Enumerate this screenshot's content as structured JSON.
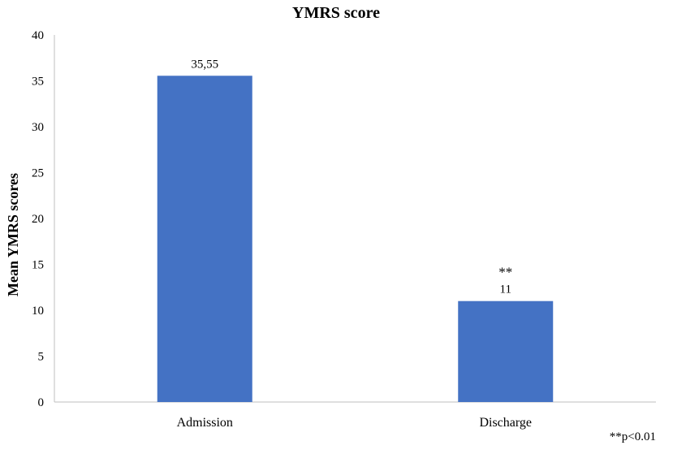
{
  "chart_data": {
    "type": "bar",
    "title": "YMRS score",
    "xlabel": "",
    "ylabel": "Mean YMRS scores",
    "categories": [
      "Admission",
      "Discharge"
    ],
    "values": [
      35.55,
      11
    ],
    "data_labels": [
      "35,55",
      "11"
    ],
    "significance_marks": [
      "",
      "**"
    ],
    "footnote": "**p<0.01",
    "ylim": [
      0,
      40
    ],
    "yticks": [
      0,
      5,
      10,
      15,
      20,
      25,
      30,
      35,
      40
    ],
    "ytick_labels": [
      "0",
      "5",
      "10",
      "15",
      "20",
      "25",
      "30",
      "35",
      "40"
    ],
    "grid": false,
    "legend": "none",
    "bar_color": "#4472C4",
    "axis_color": "#BFBFBF"
  }
}
